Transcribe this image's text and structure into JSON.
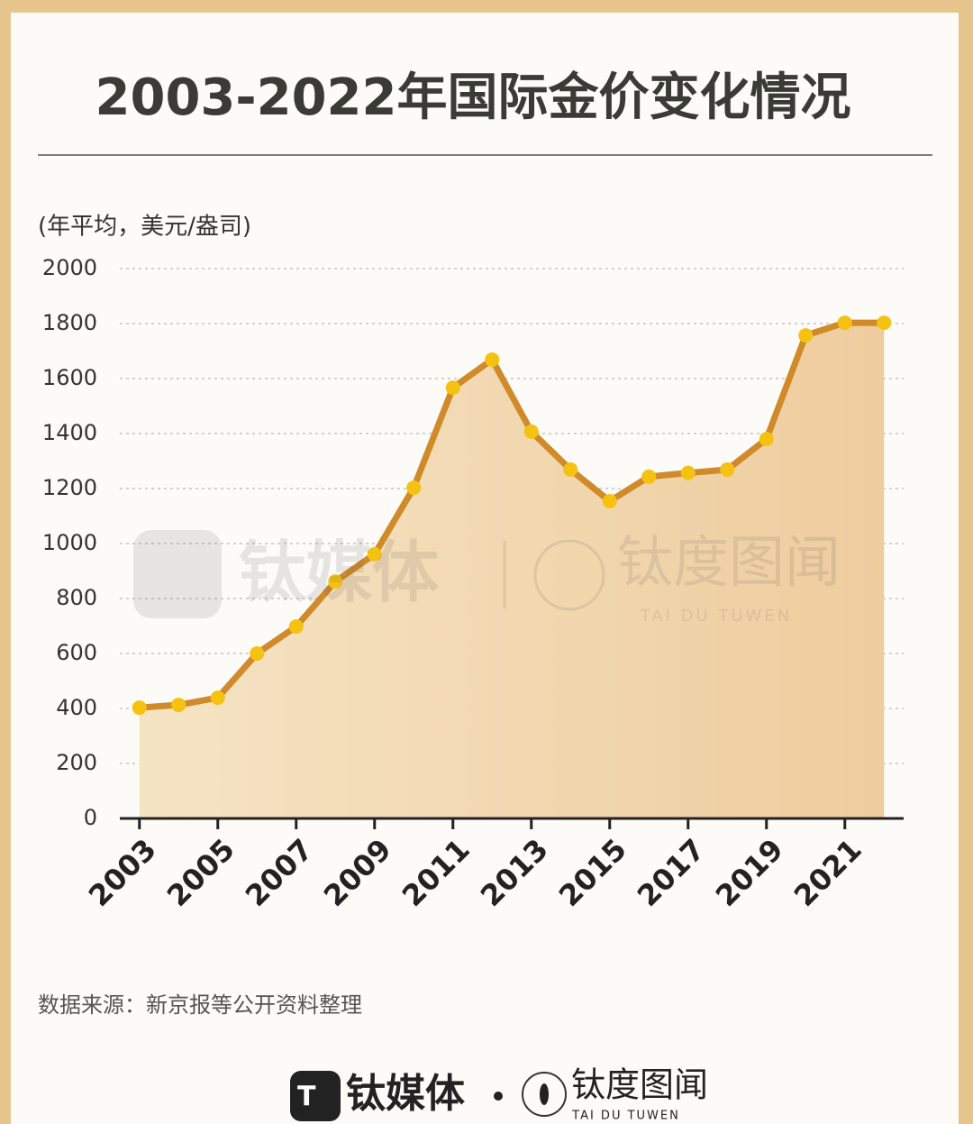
{
  "chart_data": {
    "type": "area-line",
    "title": "2003-2022年国际金价变化情况",
    "y_label": "(年平均，美元/盎司)",
    "x": [
      2003,
      2004,
      2005,
      2006,
      2007,
      2008,
      2009,
      2010,
      2011,
      2012,
      2013,
      2014,
      2015,
      2016,
      2017,
      2018,
      2019,
      2020,
      2021,
      2022
    ],
    "values": [
      403,
      413,
      439,
      600,
      698,
      862,
      961,
      1203,
      1567,
      1669,
      1407,
      1269,
      1154,
      1243,
      1257,
      1269,
      1380,
      1757,
      1803,
      1803
    ],
    "color": "#d08a2a",
    "marker_color": "#f5c211",
    "xlim": [
      2002.5,
      2022.5
    ],
    "xticks": [
      2003,
      2005,
      2007,
      2009,
      2011,
      2013,
      2015,
      2017,
      2019,
      2021
    ],
    "ylim": [
      0,
      2000
    ],
    "yticks": [
      0,
      200,
      400,
      600,
      800,
      1000,
      1200,
      1400,
      1600,
      1800,
      2000
    ],
    "grid": true,
    "watermark": [
      "钛媒体",
      "钛度图闻",
      "TAI DU TUWEN"
    ],
    "source": "数据来源：新京报等公开资料整理",
    "footer": [
      "钛媒体",
      "钛度图闻",
      "TAI DU TUWEN"
    ]
  }
}
